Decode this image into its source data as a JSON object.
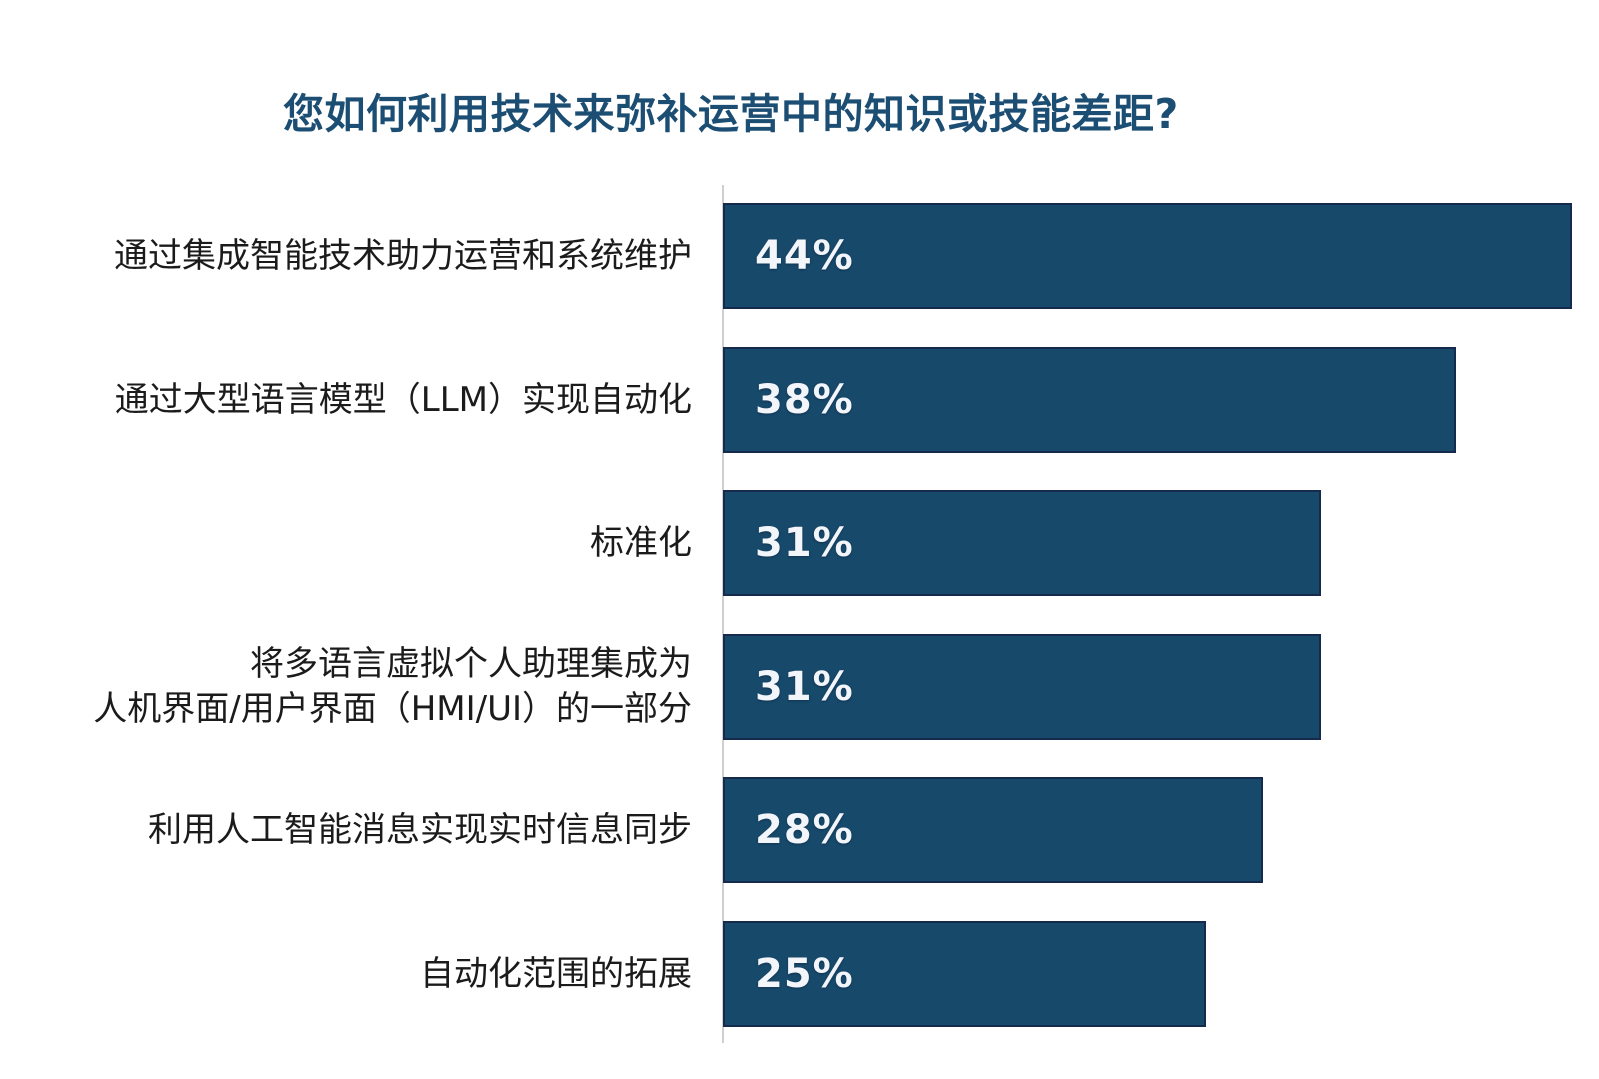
{
  "chart_data": {
    "type": "bar",
    "orientation": "horizontal",
    "title": "您如何利用技术来弥补运营中的知识或技能差距?",
    "categories": [
      "通过集成智能技术助力运营和系统维护",
      "通过大型语言模型（LLM）实现自动化",
      "标准化",
      "将多语言虚拟个人助理集成为人机界面/用户界面（HMI/UI）的一部分",
      "利用人工智能消息实现实时信息同步",
      "自动化范围的拓展"
    ],
    "values": [
      44,
      38,
      31,
      31,
      28,
      25
    ],
    "xlim": [
      0,
      45
    ],
    "grid": false,
    "legend": "none",
    "rows": [
      {
        "label": "通过集成智能技术助力运营和系统维护",
        "value": 44,
        "display": "44%"
      },
      {
        "label": "通过大型语言模型（LLM）实现自动化",
        "value": 38,
        "display": "38%"
      },
      {
        "label": "标准化",
        "value": 31,
        "display": "31%"
      },
      {
        "label": "将多语言虚拟个人助理集成为\n人机界面/用户界面（HMI/UI）的一部分",
        "value": 31,
        "display": "31%"
      },
      {
        "label": "利用人工智能消息实现实时信息同步",
        "value": 28,
        "display": "28%"
      },
      {
        "label": "自动化范围的拓展",
        "value": 25,
        "display": "25%"
      }
    ],
    "colors": {
      "bar_fill": "#17496B",
      "bar_border": "#152A4D",
      "title_text": "#1C4E74",
      "label_text": "#1B1B1B",
      "value_text": "#F2F5F9",
      "axis_line": "#CFCFCF",
      "background": "#FFFFFF"
    }
  }
}
